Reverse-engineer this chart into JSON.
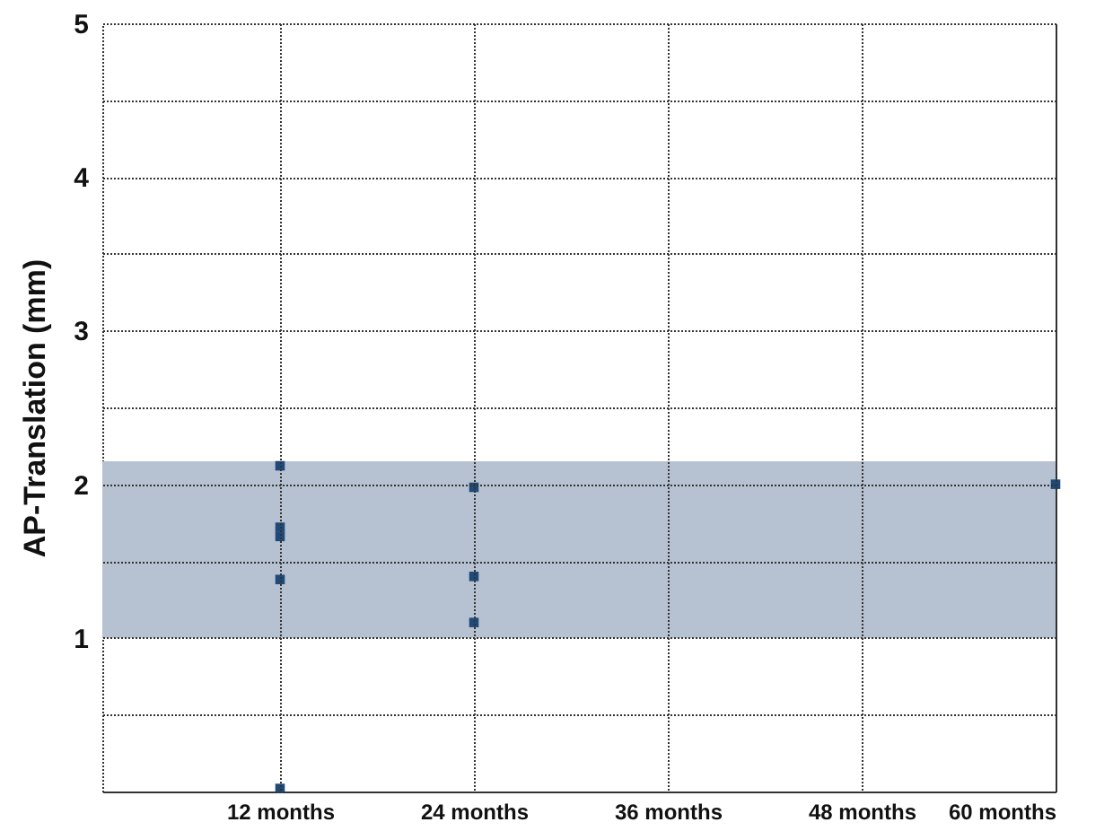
{
  "chart_data": {
    "type": "scatter",
    "ylabel": "AP-Translation (mm)",
    "x": [
      12,
      12,
      12,
      12,
      12,
      24,
      24,
      24,
      60
    ],
    "series": [
      {
        "color": "#1f4a78",
        "values": [
          2.12,
          1.72,
          1.66,
          1.38,
          0.02,
          1.98,
          1.4,
          1.1,
          2.0
        ]
      }
    ],
    "marker": "square",
    "xlim": [
      1,
      60
    ],
    "xticks": [
      {
        "value": 12,
        "label": "12 months"
      },
      {
        "value": 24,
        "label": "24 months"
      },
      {
        "value": 36,
        "label": "36 months"
      },
      {
        "value": 48,
        "label": "48 months"
      },
      {
        "value": 60,
        "label": "60 months"
      }
    ],
    "ylim": [
      0,
      5
    ],
    "yticks": [
      {
        "value": 0,
        "label": null
      },
      {
        "value": 0.5,
        "label": null
      },
      1,
      {
        "value": 1.5,
        "label": null
      },
      2,
      {
        "value": 2.5,
        "label": null
      },
      3,
      {
        "value": 3.5,
        "label": null
      },
      4,
      {
        "value": 4.5,
        "label": null
      },
      5
    ],
    "bands": [
      {
        "axis": "y",
        "from": 1,
        "to": 2.15,
        "color": "#b6c2d1"
      }
    ],
    "grid": true
  }
}
